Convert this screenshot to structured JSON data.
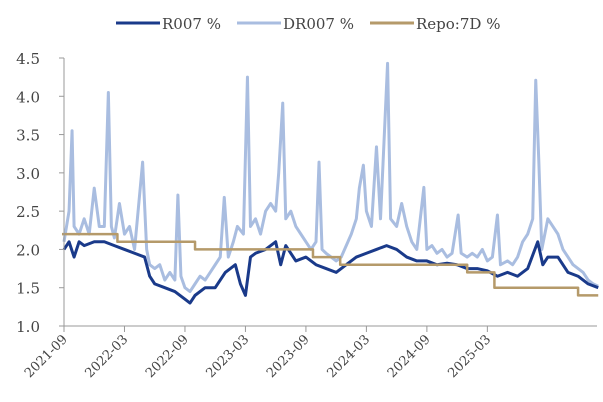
{
  "chart_data": {
    "type": "line",
    "title": "",
    "xlabel": "",
    "ylabel": "",
    "x_unit": "months since 2021-09",
    "xlim": [
      0,
      53
    ],
    "ylim": [
      1.0,
      4.5
    ],
    "grid": false,
    "legend_position": "top",
    "yticks": [
      "1.0",
      "1.5",
      "2.0",
      "2.5",
      "3.0",
      "3.5",
      "4.0",
      "4.5"
    ],
    "xticks": [
      {
        "t": 0,
        "label": "2021-09"
      },
      {
        "t": 6,
        "label": "2022-03"
      },
      {
        "t": 12,
        "label": "2022-09"
      },
      {
        "t": 18,
        "label": "2023-03"
      },
      {
        "t": 24,
        "label": "2023-09"
      },
      {
        "t": 30,
        "label": "2024-03"
      },
      {
        "t": 36,
        "label": "2024-09"
      },
      {
        "t": 42,
        "label": "2025-03"
      }
    ],
    "series": [
      {
        "name": "DR007 %",
        "color": "#a9bde0",
        "points": [
          [
            0,
            2.1
          ],
          [
            0.5,
            2.5
          ],
          [
            0.8,
            3.55
          ],
          [
            1,
            2.3
          ],
          [
            1.5,
            2.2
          ],
          [
            2,
            2.4
          ],
          [
            2.5,
            2.2
          ],
          [
            3,
            2.8
          ],
          [
            3.5,
            2.3
          ],
          [
            4,
            2.3
          ],
          [
            4.4,
            4.05
          ],
          [
            4.7,
            2.3
          ],
          [
            5,
            2.15
          ],
          [
            5.5,
            2.6
          ],
          [
            6,
            2.2
          ],
          [
            6.5,
            2.3
          ],
          [
            7,
            2.0
          ],
          [
            7.8,
            3.14
          ],
          [
            8.2,
            2.0
          ],
          [
            8.5,
            1.8
          ],
          [
            9,
            1.75
          ],
          [
            9.5,
            1.8
          ],
          [
            10,
            1.6
          ],
          [
            10.5,
            1.7
          ],
          [
            11,
            1.6
          ],
          [
            11.3,
            2.71
          ],
          [
            11.6,
            1.65
          ],
          [
            12,
            1.5
          ],
          [
            12.5,
            1.45
          ],
          [
            13,
            1.55
          ],
          [
            13.5,
            1.65
          ],
          [
            14,
            1.6
          ],
          [
            14.5,
            1.7
          ],
          [
            15,
            1.8
          ],
          [
            15.5,
            1.9
          ],
          [
            15.9,
            2.68
          ],
          [
            16.3,
            1.9
          ],
          [
            16.8,
            2.1
          ],
          [
            17.2,
            2.3
          ],
          [
            17.8,
            2.2
          ],
          [
            18.2,
            4.25
          ],
          [
            18.5,
            2.3
          ],
          [
            19,
            2.4
          ],
          [
            19.5,
            2.2
          ],
          [
            20,
            2.5
          ],
          [
            20.5,
            2.6
          ],
          [
            21,
            2.5
          ],
          [
            21.3,
            3.0
          ],
          [
            21.7,
            3.91
          ],
          [
            22,
            2.4
          ],
          [
            22.5,
            2.5
          ],
          [
            23,
            2.3
          ],
          [
            23.5,
            2.2
          ],
          [
            24,
            2.1
          ],
          [
            24.5,
            2.0
          ],
          [
            25,
            2.1
          ],
          [
            25.3,
            3.14
          ],
          [
            25.6,
            2.0
          ],
          [
            26,
            1.95
          ],
          [
            26.5,
            1.9
          ],
          [
            27,
            1.85
          ],
          [
            27.5,
            1.9
          ],
          [
            28,
            2.05
          ],
          [
            28.5,
            2.2
          ],
          [
            29,
            2.4
          ],
          [
            29.3,
            2.8
          ],
          [
            29.7,
            3.1
          ],
          [
            30,
            2.5
          ],
          [
            30.5,
            2.3
          ],
          [
            31,
            3.34
          ],
          [
            31.4,
            2.4
          ],
          [
            32.1,
            4.43
          ],
          [
            32.4,
            2.4
          ],
          [
            33,
            2.3
          ],
          [
            33.5,
            2.6
          ],
          [
            34,
            2.3
          ],
          [
            34.5,
            2.1
          ],
          [
            35,
            2.0
          ],
          [
            35.7,
            2.81
          ],
          [
            36,
            2.0
          ],
          [
            36.5,
            2.05
          ],
          [
            37,
            1.95
          ],
          [
            37.5,
            2.0
          ],
          [
            38,
            1.9
          ],
          [
            38.5,
            1.95
          ],
          [
            39.1,
            2.45
          ],
          [
            39.4,
            1.95
          ],
          [
            40,
            1.9
          ],
          [
            40.5,
            1.95
          ],
          [
            41,
            1.9
          ],
          [
            41.5,
            2.0
          ],
          [
            42,
            1.85
          ],
          [
            42.5,
            1.9
          ],
          [
            43,
            2.45
          ],
          [
            43.3,
            1.8
          ],
          [
            44,
            1.85
          ],
          [
            44.5,
            1.8
          ],
          [
            45,
            1.9
          ],
          [
            45.5,
            2.1
          ],
          [
            46,
            2.2
          ],
          [
            46.5,
            2.4
          ],
          [
            46.8,
            4.21
          ],
          [
            47.1,
            3.17
          ],
          [
            47.4,
            2.0
          ],
          [
            48,
            2.4
          ],
          [
            48.5,
            2.3
          ],
          [
            49,
            2.2
          ],
          [
            49.5,
            2.0
          ],
          [
            50,
            1.9
          ],
          [
            50.5,
            1.8
          ],
          [
            51,
            1.75
          ],
          [
            51.5,
            1.7
          ],
          [
            52,
            1.6
          ],
          [
            52.5,
            1.55
          ],
          [
            53,
            1.52
          ]
        ]
      },
      {
        "name": "R007 %",
        "color": "#1a3a8a",
        "points": [
          [
            0,
            2.0
          ],
          [
            0.5,
            2.1
          ],
          [
            1,
            1.9
          ],
          [
            1.5,
            2.1
          ],
          [
            2,
            2.05
          ],
          [
            3,
            2.1
          ],
          [
            4,
            2.1
          ],
          [
            5,
            2.05
          ],
          [
            6,
            2.0
          ],
          [
            7,
            1.95
          ],
          [
            8,
            1.9
          ],
          [
            8.5,
            1.65
          ],
          [
            9,
            1.55
          ],
          [
            10,
            1.5
          ],
          [
            11,
            1.45
          ],
          [
            12,
            1.35
          ],
          [
            12.5,
            1.3
          ],
          [
            13,
            1.4
          ],
          [
            14,
            1.5
          ],
          [
            15,
            1.5
          ],
          [
            16,
            1.7
          ],
          [
            17,
            1.8
          ],
          [
            17.5,
            1.55
          ],
          [
            18,
            1.4
          ],
          [
            18.5,
            1.9
          ],
          [
            19,
            1.95
          ],
          [
            20,
            2.0
          ],
          [
            21,
            2.1
          ],
          [
            21.5,
            1.8
          ],
          [
            22,
            2.05
          ],
          [
            23,
            1.85
          ],
          [
            24,
            1.9
          ],
          [
            25,
            1.8
          ],
          [
            26,
            1.75
          ],
          [
            27,
            1.7
          ],
          [
            28,
            1.8
          ],
          [
            29,
            1.9
          ],
          [
            30,
            1.95
          ],
          [
            31,
            2.0
          ],
          [
            32,
            2.05
          ],
          [
            33,
            2.0
          ],
          [
            34,
            1.9
          ],
          [
            35,
            1.85
          ],
          [
            36,
            1.85
          ],
          [
            37,
            1.8
          ],
          [
            38,
            1.82
          ],
          [
            39,
            1.8
          ],
          [
            40,
            1.75
          ],
          [
            41,
            1.75
          ],
          [
            42,
            1.72
          ],
          [
            43,
            1.65
          ],
          [
            44,
            1.7
          ],
          [
            45,
            1.65
          ],
          [
            46,
            1.75
          ],
          [
            47,
            2.1
          ],
          [
            47.5,
            1.8
          ],
          [
            48,
            1.9
          ],
          [
            49,
            1.9
          ],
          [
            50,
            1.7
          ],
          [
            51,
            1.65
          ],
          [
            52,
            1.55
          ],
          [
            53,
            1.5
          ]
        ]
      },
      {
        "name": "Repo:7D %",
        "color": "#b59a6a",
        "step": true,
        "points": [
          [
            -0.2,
            2.2
          ],
          [
            5.3,
            2.1
          ],
          [
            13.0,
            2.0
          ],
          [
            24.7,
            1.9
          ],
          [
            27.4,
            1.8
          ],
          [
            40.0,
            1.7
          ],
          [
            42.7,
            1.5
          ],
          [
            51.0,
            1.4
          ],
          [
            53,
            1.4
          ]
        ]
      }
    ],
    "legend": [
      "R007 %",
      "DR007 %",
      "Repo:7D %"
    ]
  }
}
